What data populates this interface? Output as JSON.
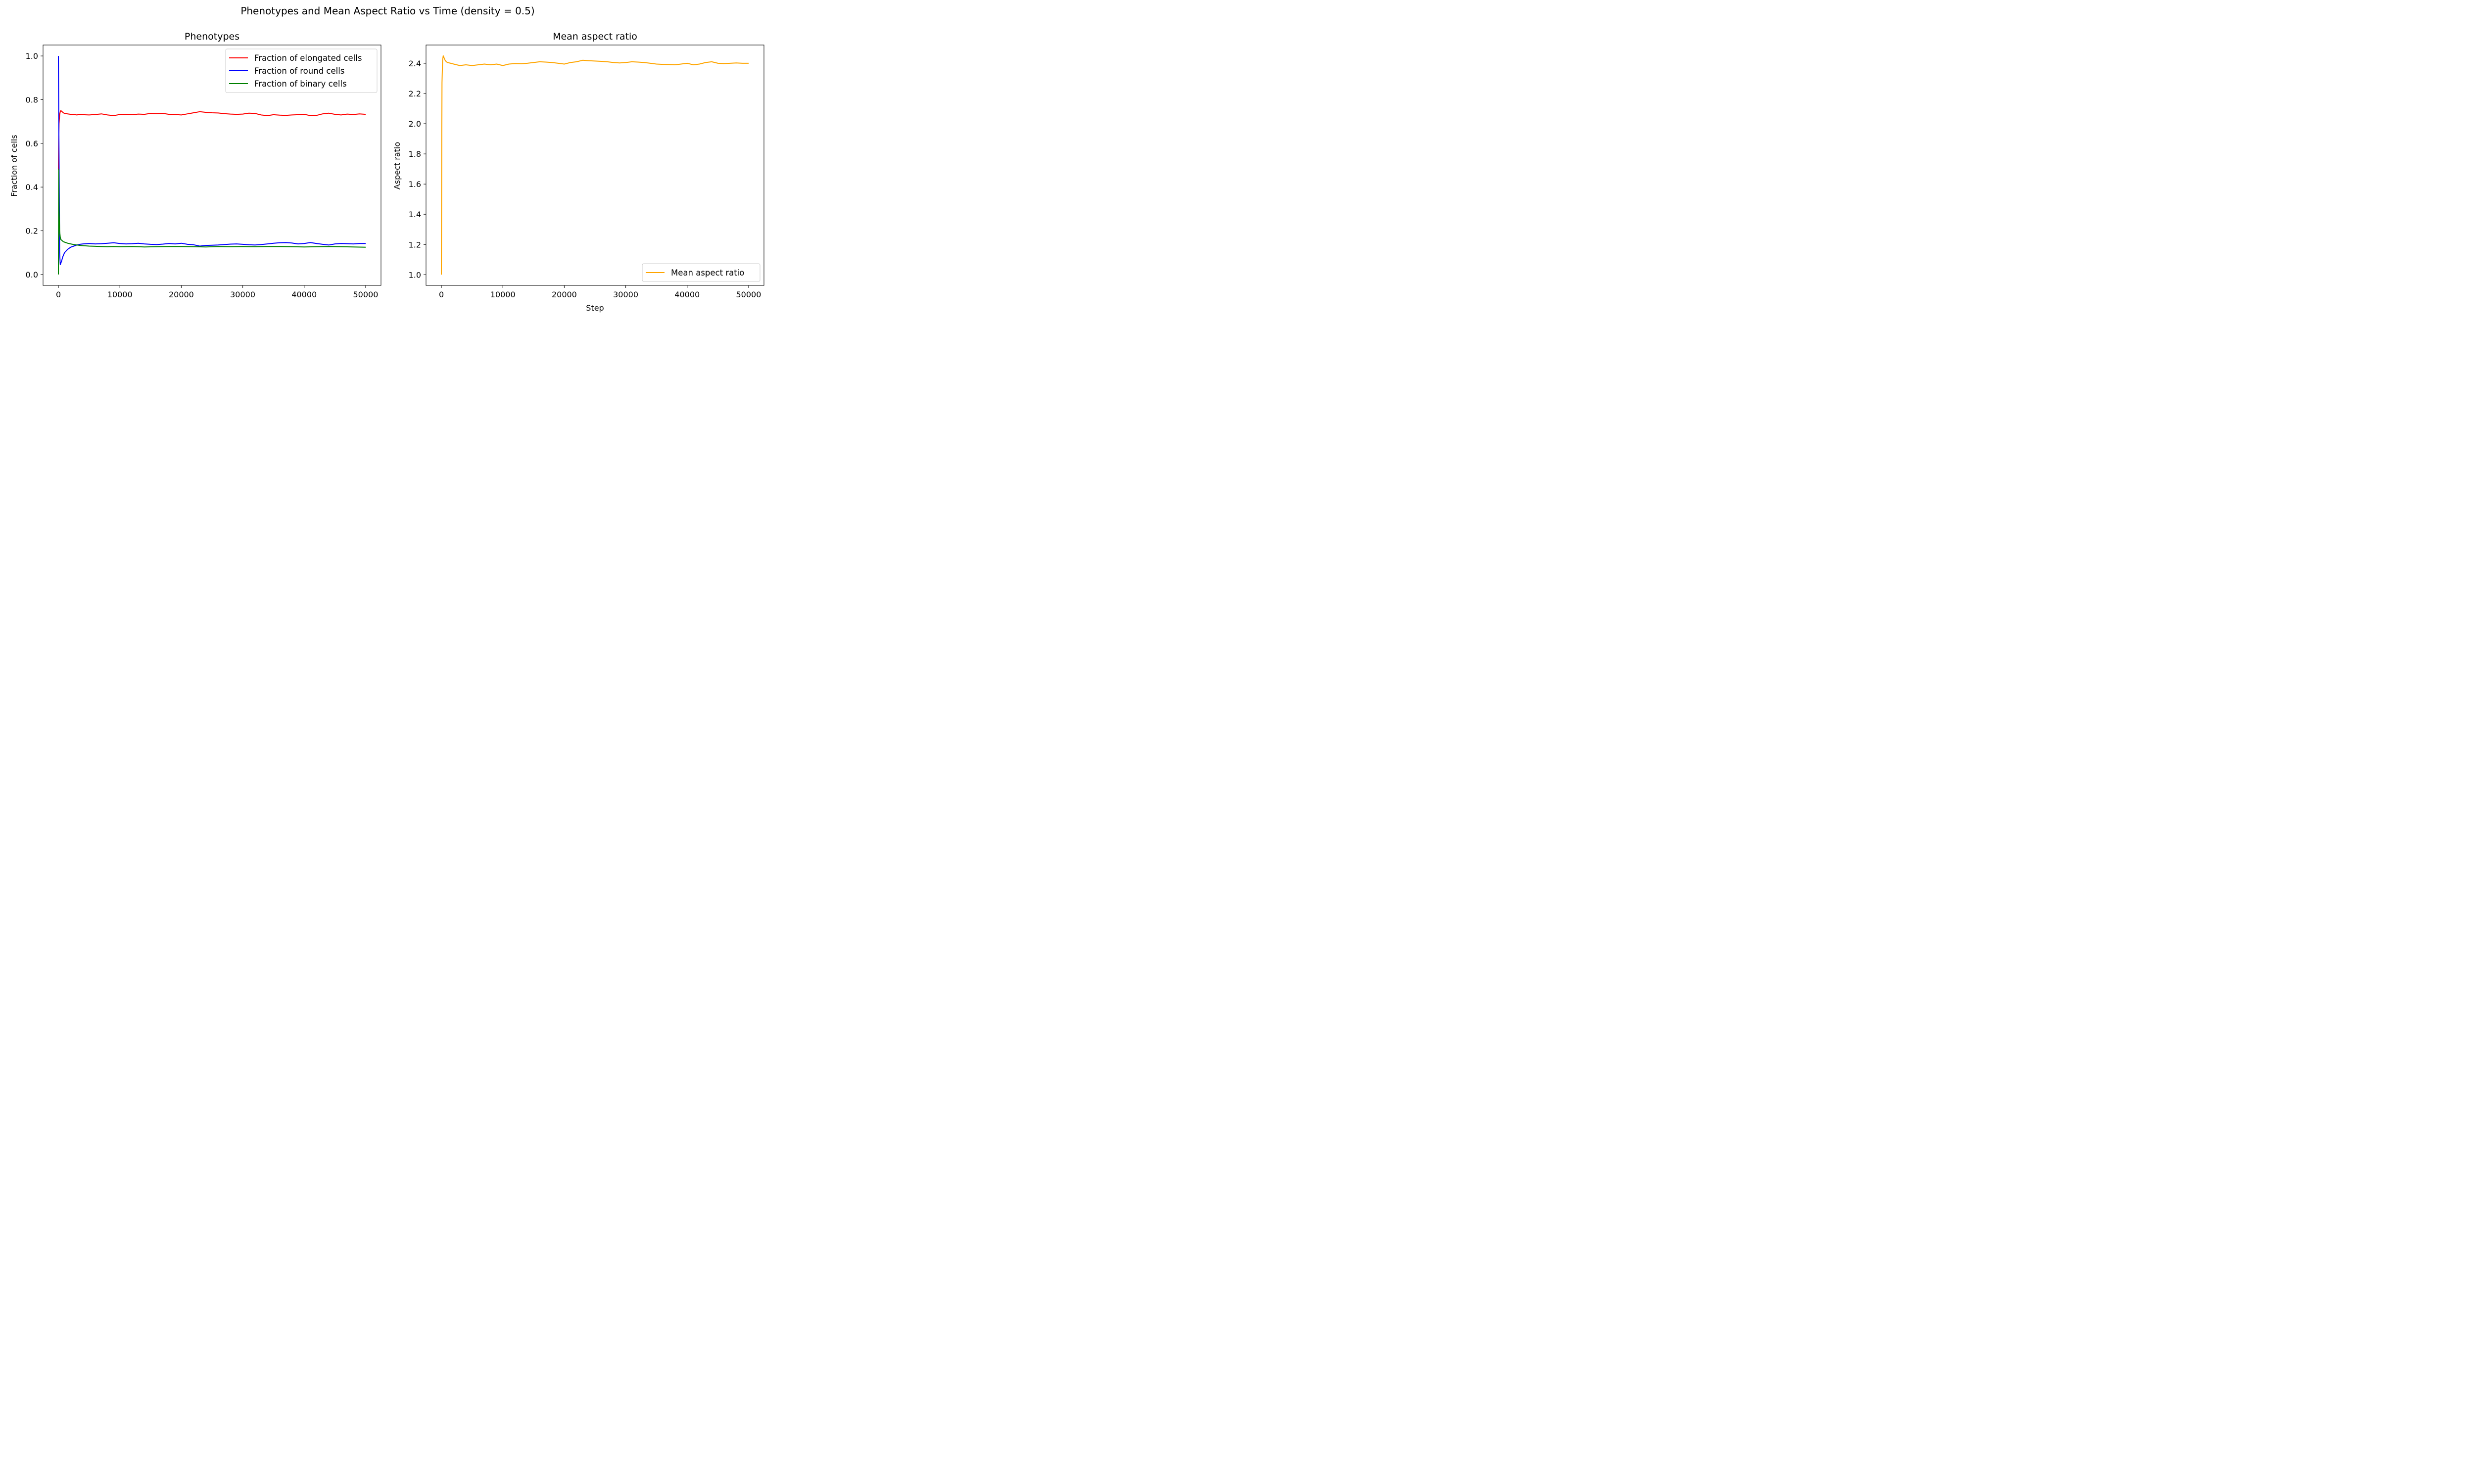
{
  "figure_title": "Phenotypes and Mean Aspect Ratio vs Time (density = 0.5)",
  "chart_data": [
    {
      "type": "line",
      "title": "Phenotypes",
      "xlabel": "",
      "ylabel": "Fraction of cells",
      "xlim": [
        -2500,
        52500
      ],
      "ylim": [
        -0.05,
        1.05
      ],
      "xticks": [
        0,
        10000,
        20000,
        30000,
        40000,
        50000
      ],
      "yticks": [
        0.0,
        0.2,
        0.4,
        0.6,
        0.8,
        1.0
      ],
      "ytick_decimals": 1,
      "legend_position": "top-right",
      "series": [
        {
          "name": "Fraction of elongated cells",
          "color": "#ff0000",
          "x": [
            0,
            100,
            200,
            300,
            400,
            600,
            800,
            1000,
            1500,
            2000,
            2500,
            3000,
            3500,
            4000,
            5000,
            6000,
            7000,
            8000,
            9000,
            10000,
            11000,
            12000,
            13000,
            14000,
            15000,
            16000,
            17000,
            18000,
            19000,
            20000,
            21000,
            22000,
            23000,
            24000,
            25000,
            26000,
            27000,
            28000,
            29000,
            30000,
            31000,
            32000,
            33000,
            34000,
            35000,
            36000,
            37000,
            38000,
            39000,
            40000,
            41000,
            42000,
            43000,
            44000,
            45000,
            46000,
            47000,
            48000,
            49000,
            50000
          ],
          "values": [
            0.48,
            0.69,
            0.73,
            0.745,
            0.75,
            0.745,
            0.74,
            0.737,
            0.735,
            0.733,
            0.732,
            0.73,
            0.733,
            0.731,
            0.73,
            0.732,
            0.735,
            0.73,
            0.727,
            0.732,
            0.733,
            0.731,
            0.734,
            0.733,
            0.737,
            0.736,
            0.737,
            0.733,
            0.732,
            0.73,
            0.735,
            0.74,
            0.745,
            0.742,
            0.74,
            0.739,
            0.736,
            0.734,
            0.733,
            0.734,
            0.738,
            0.737,
            0.73,
            0.727,
            0.731,
            0.729,
            0.728,
            0.73,
            0.731,
            0.733,
            0.727,
            0.728,
            0.735,
            0.738,
            0.733,
            0.73,
            0.734,
            0.732,
            0.735,
            0.733
          ]
        },
        {
          "name": "Fraction of round cells",
          "color": "#0000ff",
          "x": [
            0,
            100,
            200,
            300,
            500,
            700,
            1000,
            1500,
            2000,
            2500,
            3000,
            3500,
            4000,
            5000,
            6000,
            7000,
            8000,
            9000,
            10000,
            11000,
            12000,
            13000,
            14000,
            15000,
            16000,
            17000,
            18000,
            19000,
            20000,
            21000,
            22000,
            23000,
            24000,
            25000,
            26000,
            27000,
            28000,
            29000,
            30000,
            31000,
            32000,
            33000,
            34000,
            35000,
            36000,
            37000,
            38000,
            39000,
            40000,
            41000,
            42000,
            43000,
            44000,
            45000,
            46000,
            47000,
            48000,
            49000,
            50000
          ],
          "values": [
            1.0,
            0.55,
            0.1,
            0.045,
            0.06,
            0.08,
            0.1,
            0.115,
            0.125,
            0.13,
            0.135,
            0.138,
            0.14,
            0.142,
            0.14,
            0.141,
            0.143,
            0.145,
            0.142,
            0.14,
            0.141,
            0.143,
            0.14,
            0.138,
            0.137,
            0.139,
            0.142,
            0.14,
            0.143,
            0.138,
            0.136,
            0.13,
            0.133,
            0.134,
            0.135,
            0.137,
            0.139,
            0.14,
            0.138,
            0.136,
            0.135,
            0.137,
            0.14,
            0.143,
            0.145,
            0.146,
            0.144,
            0.14,
            0.142,
            0.146,
            0.142,
            0.138,
            0.135,
            0.14,
            0.142,
            0.141,
            0.14,
            0.142,
            0.142
          ]
        },
        {
          "name": "Fraction of binary cells",
          "color": "#008000",
          "x": [
            0,
            50,
            100,
            200,
            300,
            400,
            600,
            800,
            1000,
            1500,
            2000,
            2500,
            3000,
            3500,
            4000,
            5000,
            6000,
            7000,
            8000,
            9000,
            10000,
            12000,
            14000,
            16000,
            18000,
            20000,
            22000,
            24000,
            26000,
            28000,
            30000,
            32000,
            34000,
            36000,
            38000,
            40000,
            42000,
            44000,
            46000,
            48000,
            50000
          ],
          "values": [
            0.0,
            0.48,
            0.3,
            0.2,
            0.17,
            0.16,
            0.155,
            0.15,
            0.148,
            0.143,
            0.14,
            0.137,
            0.135,
            0.133,
            0.132,
            0.13,
            0.129,
            0.128,
            0.127,
            0.128,
            0.127,
            0.128,
            0.126,
            0.127,
            0.128,
            0.128,
            0.127,
            0.126,
            0.128,
            0.127,
            0.128,
            0.127,
            0.128,
            0.128,
            0.127,
            0.126,
            0.127,
            0.128,
            0.127,
            0.126,
            0.125
          ]
        }
      ]
    },
    {
      "type": "line",
      "title": "Mean aspect ratio",
      "xlabel": "Step",
      "ylabel": "Aspect ratio",
      "xlim": [
        -2500,
        52500
      ],
      "ylim": [
        0.929,
        2.521
      ],
      "xticks": [
        0,
        10000,
        20000,
        30000,
        40000,
        50000
      ],
      "yticks": [
        1.0,
        1.2,
        1.4,
        1.6,
        1.8,
        2.0,
        2.2,
        2.4
      ],
      "ytick_decimals": 1,
      "legend_position": "bottom-right",
      "series": [
        {
          "name": "Mean aspect ratio",
          "color": "#ffa500",
          "x": [
            0,
            100,
            200,
            300,
            400,
            600,
            800,
            1000,
            1500,
            2000,
            2500,
            3000,
            4000,
            5000,
            6000,
            7000,
            8000,
            9000,
            10000,
            11000,
            12000,
            13000,
            14000,
            15000,
            16000,
            17000,
            18000,
            19000,
            20000,
            21000,
            22000,
            23000,
            24000,
            25000,
            26000,
            27000,
            28000,
            29000,
            30000,
            31000,
            32000,
            33000,
            34000,
            35000,
            36000,
            37000,
            38000,
            39000,
            40000,
            41000,
            42000,
            43000,
            44000,
            45000,
            46000,
            47000,
            48000,
            49000,
            50000
          ],
          "values": [
            1.0,
            2.27,
            2.42,
            2.45,
            2.44,
            2.42,
            2.41,
            2.405,
            2.4,
            2.395,
            2.39,
            2.385,
            2.39,
            2.385,
            2.39,
            2.395,
            2.39,
            2.395,
            2.385,
            2.395,
            2.398,
            2.397,
            2.4,
            2.405,
            2.41,
            2.408,
            2.405,
            2.4,
            2.395,
            2.405,
            2.41,
            2.42,
            2.417,
            2.415,
            2.413,
            2.41,
            2.405,
            2.402,
            2.405,
            2.41,
            2.408,
            2.405,
            2.4,
            2.395,
            2.393,
            2.392,
            2.39,
            2.395,
            2.4,
            2.39,
            2.395,
            2.405,
            2.41,
            2.4,
            2.398,
            2.4,
            2.402,
            2.4,
            2.4
          ]
        }
      ]
    }
  ]
}
